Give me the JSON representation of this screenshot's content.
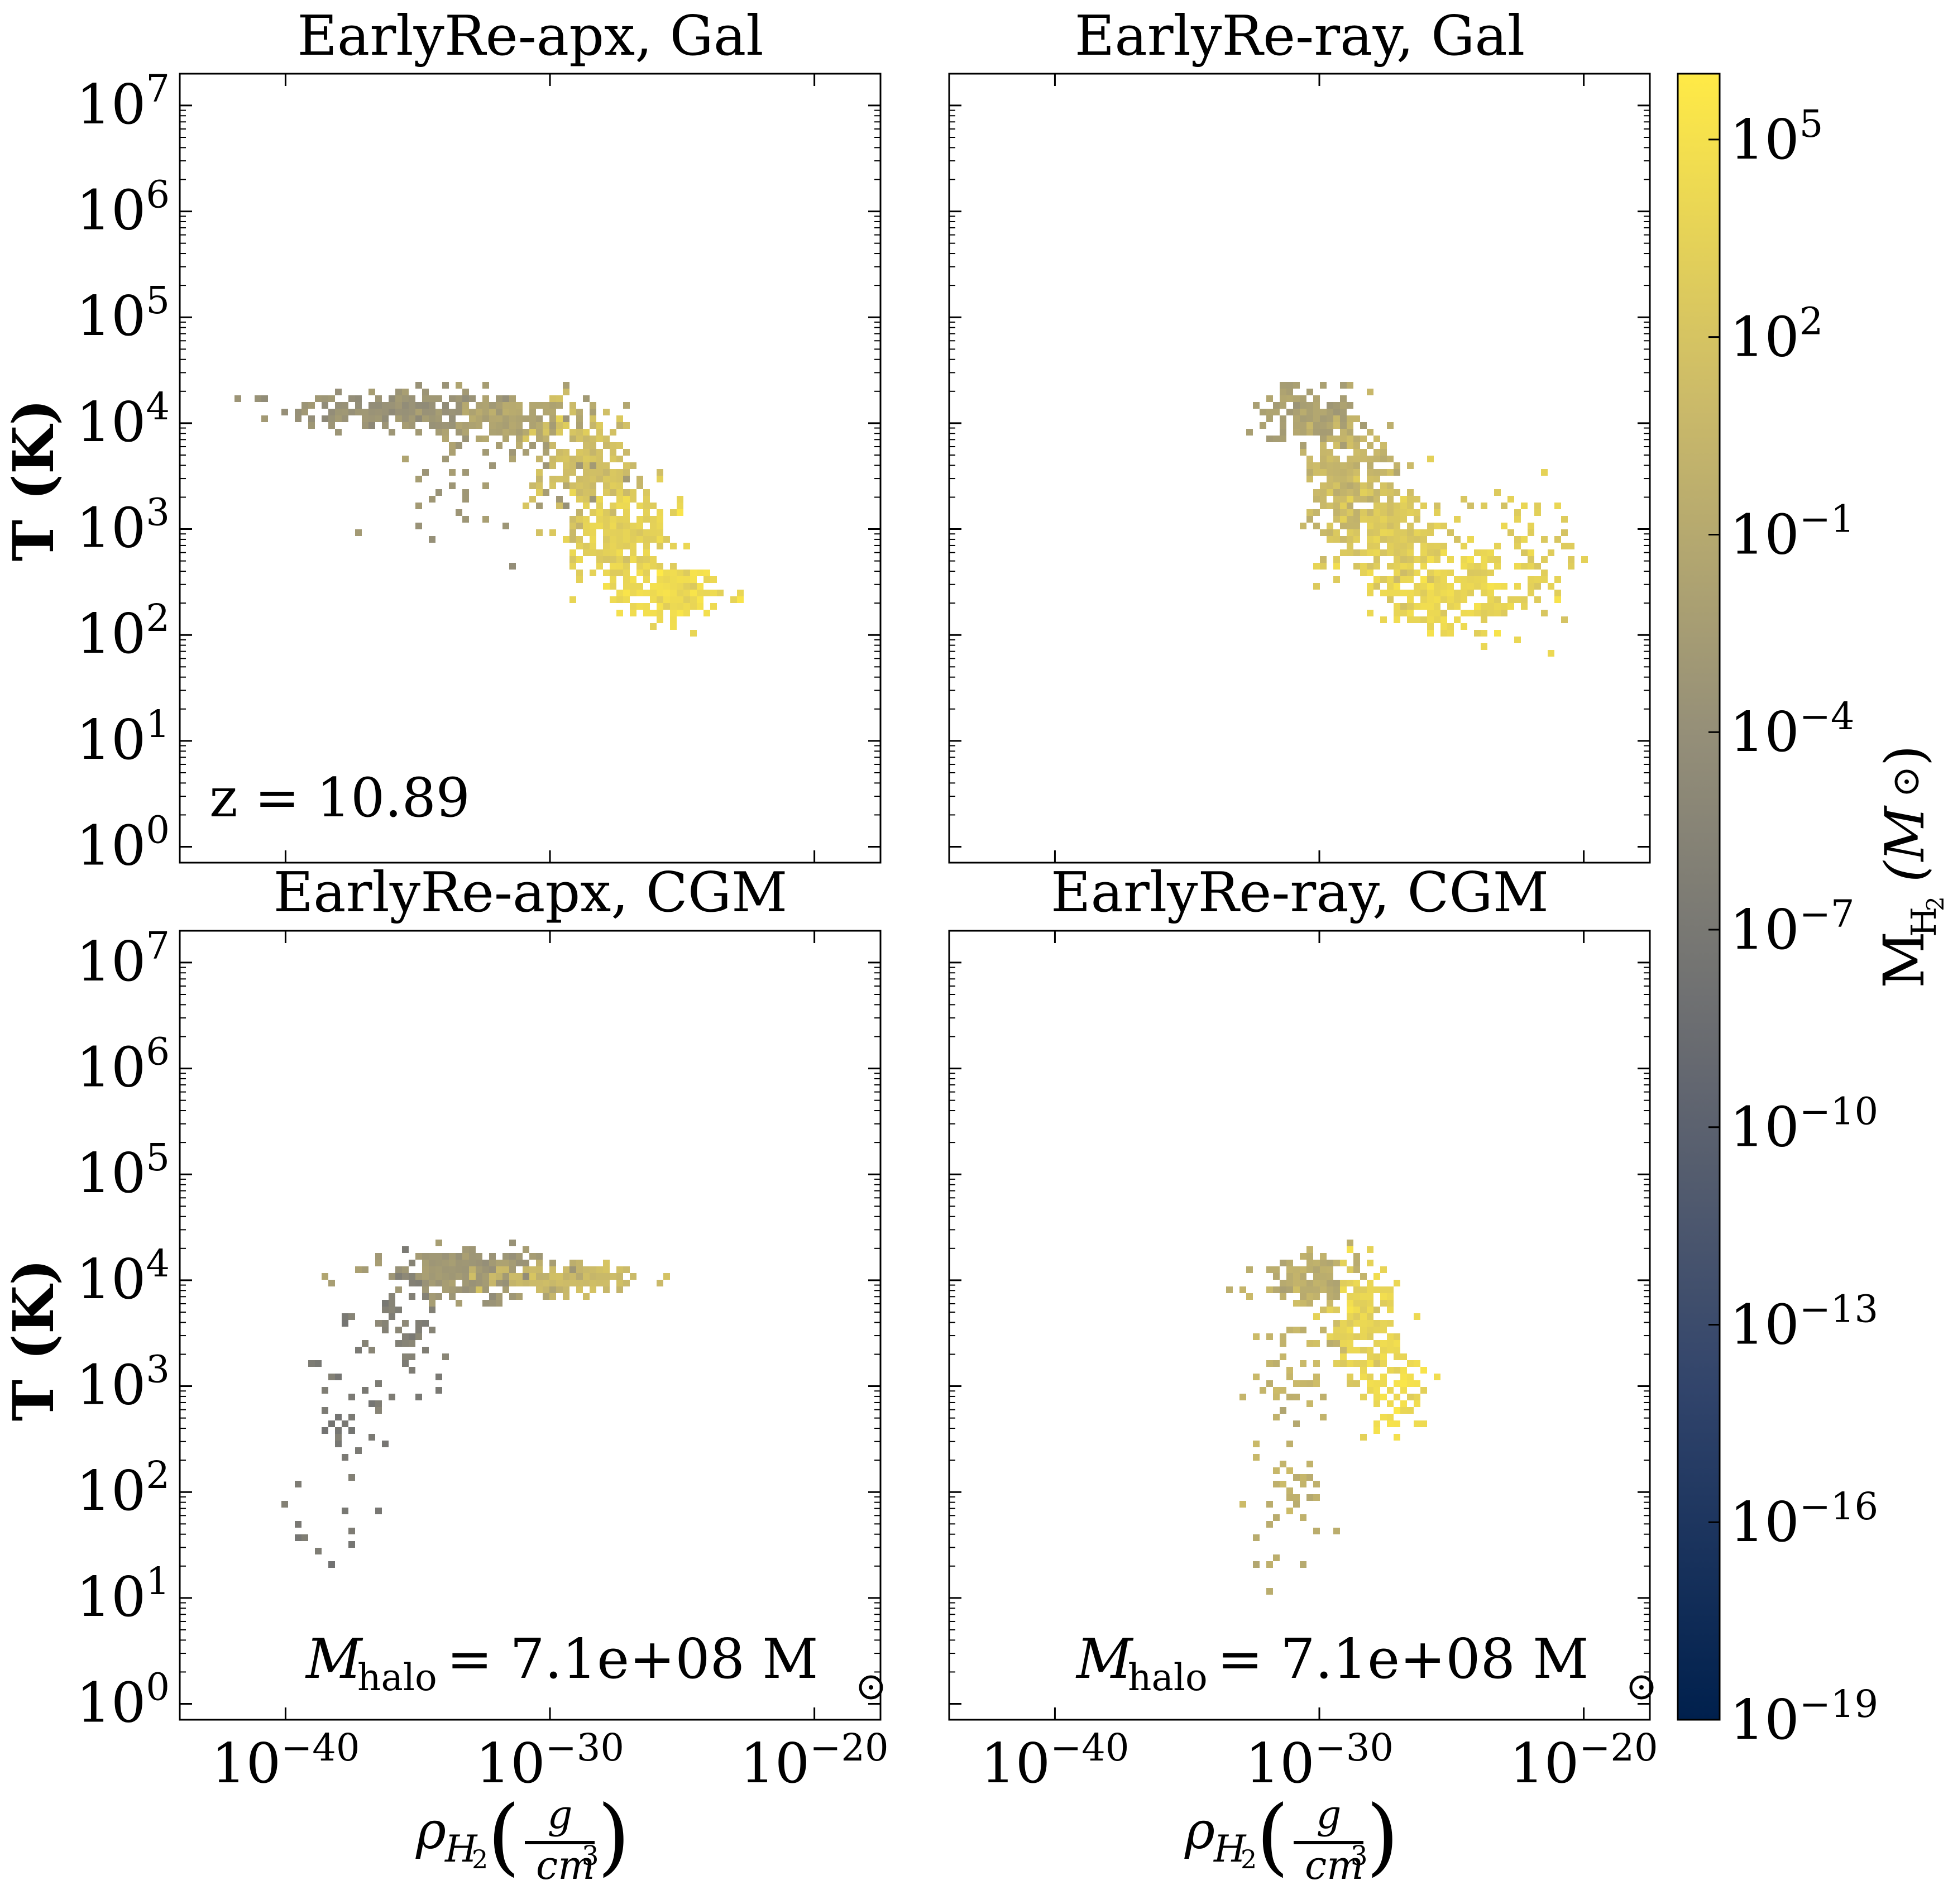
{
  "figure": {
    "colorbar": {
      "label_main": "M",
      "label_sub": "H",
      "label_sub2": "2",
      "label_unit": "(M",
      "label_unit_close": ")",
      "ticks": [
        {
          "base": "10",
          "exp": "5",
          "value": 5
        },
        {
          "base": "10",
          "exp": "2",
          "value": 2
        },
        {
          "base": "10",
          "exp": "−1",
          "value": -1
        },
        {
          "base": "10",
          "exp": "−4",
          "value": -4
        },
        {
          "base": "10",
          "exp": "−7",
          "value": -7
        },
        {
          "base": "10",
          "exp": "−10",
          "value": -10
        },
        {
          "base": "10",
          "exp": "−13",
          "value": -13
        },
        {
          "base": "10",
          "exp": "−16",
          "value": -16
        },
        {
          "base": "10",
          "exp": "−19",
          "value": -19
        }
      ],
      "range_log": [
        -19,
        6
      ],
      "colormap": "cividis",
      "colors": [
        "#00204d",
        "#31446b",
        "#666970",
        "#958f78",
        "#cbba69",
        "#ffea46"
      ]
    },
    "ylabel": "T (K)",
    "xlabel_main": "ρ",
    "xlabel_sub": "H",
    "xlabel_sub2": "2",
    "xlabel_num": "g",
    "xlabel_den": "cm",
    "xlabel_den_exp": "3",
    "y_ticks": [
      {
        "base": "10",
        "exp": "7",
        "value": 7
      },
      {
        "base": "10",
        "exp": "6",
        "value": 6
      },
      {
        "base": "10",
        "exp": "5",
        "value": 5
      },
      {
        "base": "10",
        "exp": "4",
        "value": 4
      },
      {
        "base": "10",
        "exp": "3",
        "value": 3
      },
      {
        "base": "10",
        "exp": "2",
        "value": 2
      },
      {
        "base": "10",
        "exp": "1",
        "value": 1
      },
      {
        "base": "10",
        "exp": "0",
        "value": 0
      }
    ],
    "x_ticks": [
      {
        "base": "10",
        "exp": "−40",
        "value": -40
      },
      {
        "base": "10",
        "exp": "−30",
        "value": -30
      },
      {
        "base": "10",
        "exp": "−20",
        "value": -20
      }
    ]
  },
  "annotations": {
    "redshift": "z = 10.89",
    "halo_mass_lhs": "M",
    "halo_mass_sub": "halo",
    "halo_mass_rhs": " = 7.1e+08 M"
  },
  "chart_data": [
    {
      "type": "heatmap",
      "title": "EarlyRe-apx, Gal",
      "xlabel": "ρ_H2 (g/cm3)",
      "ylabel": "T (K)",
      "xscale": "log",
      "yscale": "log",
      "xlim_log": [
        -44,
        -17.5
      ],
      "ylim_log": [
        -0.15,
        7.3
      ],
      "annotation": "z = 10.89",
      "clusters": [
        {
          "x_log": -35.5,
          "y_log": 4.15,
          "sx": 2.2,
          "sy": 0.09,
          "n": 260,
          "c_log": -3.5
        },
        {
          "x_log": -31.5,
          "y_log": 4.05,
          "sx": 1.4,
          "sy": 0.12,
          "n": 150,
          "c_log": -1.5
        },
        {
          "x_log": -28.7,
          "y_log": 3.6,
          "sx": 0.9,
          "sy": 0.3,
          "n": 200,
          "c_log": 1.5
        },
        {
          "x_log": -27.2,
          "y_log": 2.95,
          "sx": 1.0,
          "sy": 0.25,
          "n": 230,
          "c_log": 3.5
        },
        {
          "x_log": -25.5,
          "y_log": 2.4,
          "sx": 1.0,
          "sy": 0.12,
          "n": 160,
          "c_log": 4.5
        },
        {
          "x_log": -33.0,
          "y_log": 3.55,
          "sx": 2.0,
          "sy": 0.3,
          "n": 40,
          "c_log": -3.0
        }
      ]
    },
    {
      "type": "heatmap",
      "title": "EarlyRe-ray, Gal",
      "xlabel": "ρ_H2 (g/cm3)",
      "ylabel": "T (K)",
      "xscale": "log",
      "yscale": "log",
      "xlim_log": [
        -44,
        -17.5
      ],
      "ylim_log": [
        -0.15,
        7.3
      ],
      "clusters": [
        {
          "x_log": -30.5,
          "y_log": 4.1,
          "sx": 0.9,
          "sy": 0.12,
          "n": 120,
          "c_log": -2.0
        },
        {
          "x_log": -29.0,
          "y_log": 3.55,
          "sx": 0.9,
          "sy": 0.3,
          "n": 220,
          "c_log": 0.5
        },
        {
          "x_log": -27.3,
          "y_log": 2.95,
          "sx": 1.1,
          "sy": 0.25,
          "n": 260,
          "c_log": 2.5
        },
        {
          "x_log": -25.0,
          "y_log": 2.4,
          "sx": 1.5,
          "sy": 0.18,
          "n": 260,
          "c_log": 4.0
        },
        {
          "x_log": -22.5,
          "y_log": 2.8,
          "sx": 1.2,
          "sy": 0.3,
          "n": 60,
          "c_log": 3.0
        }
      ]
    },
    {
      "type": "heatmap",
      "title": "EarlyRe-apx, CGM",
      "xlabel": "ρ_H2 (g/cm3)",
      "ylabel": "T (K)",
      "xscale": "log",
      "yscale": "log",
      "xlim_log": [
        -44,
        -17.5
      ],
      "ylim_log": [
        -0.15,
        7.3
      ],
      "annotation": "M_halo = 7.1e+08 M_sun",
      "clusters": [
        {
          "x_log": -33.0,
          "y_log": 4.1,
          "sx": 1.6,
          "sy": 0.1,
          "n": 260,
          "c_log": -3.0
        },
        {
          "x_log": -29.5,
          "y_log": 4.05,
          "sx": 1.4,
          "sy": 0.06,
          "n": 120,
          "c_log": 1.0
        },
        {
          "x_log": -35.5,
          "y_log": 3.6,
          "sx": 0.9,
          "sy": 0.3,
          "n": 50,
          "c_log": -6.0
        },
        {
          "x_log": -37.5,
          "y_log": 2.7,
          "sx": 0.7,
          "sy": 0.5,
          "n": 35,
          "c_log": -7.0
        },
        {
          "x_log": -39.5,
          "y_log": 1.8,
          "sx": 0.5,
          "sy": 0.2,
          "n": 6,
          "c_log": -7.0
        }
      ]
    },
    {
      "type": "heatmap",
      "title": "EarlyRe-ray, CGM",
      "xlabel": "ρ_H2 (g/cm3)",
      "ylabel": "T (K)",
      "xscale": "log",
      "yscale": "log",
      "xlim_log": [
        -44,
        -17.5
      ],
      "ylim_log": [
        -0.15,
        7.3
      ],
      "annotation": "M_halo = 7.1e+08 M_sun",
      "clusters": [
        {
          "x_log": -30.3,
          "y_log": 4.1,
          "sx": 0.9,
          "sy": 0.1,
          "n": 110,
          "c_log": -0.5
        },
        {
          "x_log": -28.5,
          "y_log": 3.6,
          "sx": 0.6,
          "sy": 0.3,
          "n": 140,
          "c_log": 3.5
        },
        {
          "x_log": -27.2,
          "y_log": 3.0,
          "sx": 0.6,
          "sy": 0.25,
          "n": 70,
          "c_log": 4.5
        },
        {
          "x_log": -31.0,
          "y_log": 3.3,
          "sx": 1.0,
          "sy": 0.45,
          "n": 60,
          "c_log": 0.5
        },
        {
          "x_log": -31.3,
          "y_log": 2.0,
          "sx": 0.6,
          "sy": 0.35,
          "n": 30,
          "c_log": 0.0
        },
        {
          "x_log": -32.0,
          "y_log": 1.3,
          "sx": 0.2,
          "sy": 0.2,
          "n": 6,
          "c_log": 0.0
        }
      ]
    }
  ]
}
